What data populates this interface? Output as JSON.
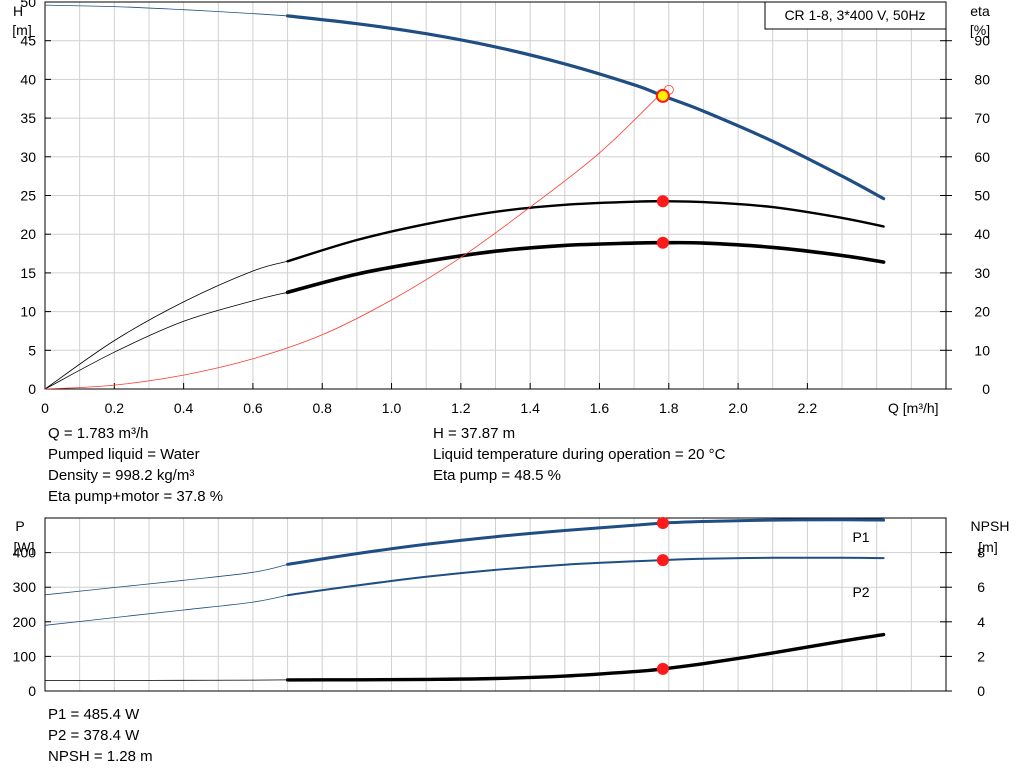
{
  "colors": {
    "head": "#1f4e84",
    "eta": "#ff3b30",
    "point": "#ff1a1a",
    "dutyPoint": "#ffee00",
    "black": "#000000",
    "grid": "#d0d0d0"
  },
  "top_chart": {
    "legend_box": "CR 1-8, 3*400 V, 50Hz",
    "left_axis_label": [
      "H",
      "[m]"
    ],
    "right_axis_label": [
      "eta",
      "[%]"
    ],
    "x_axis_label": "Q [m³/h]",
    "x_ticks": [
      "0",
      "0.2",
      "0.4",
      "0.6",
      "0.8",
      "1.0",
      "1.2",
      "1.4",
      "1.6",
      "1.8",
      "2.0",
      "2.2"
    ],
    "y_ticks": [
      "0",
      "5",
      "10",
      "15",
      "20",
      "25",
      "30",
      "35",
      "40",
      "45",
      "50"
    ],
    "eta_ticks": [
      "0",
      "10",
      "20",
      "30",
      "40",
      "50",
      "60",
      "70",
      "80",
      "90"
    ]
  },
  "top_info": {
    "left": [
      "Q = 1.783 m³/h",
      "Pumped liquid = Water",
      "Density = 998.2 kg/m³",
      "Eta pump+motor = 37.8 %"
    ],
    "right": [
      "H = 37.87 m",
      "Liquid temperature during operation = 20 °C",
      "Eta pump = 48.5 %"
    ]
  },
  "bottom_chart": {
    "left_axis_label": [
      "P",
      "[W]"
    ],
    "right_axis_label": [
      "NPSH",
      "[m]"
    ],
    "y_ticks": [
      "0",
      "100",
      "200",
      "300",
      "400"
    ],
    "npsh_ticks": [
      "0",
      "2",
      "4",
      "6",
      "8"
    ],
    "series_labels": [
      "P1",
      "P2"
    ]
  },
  "bottom_info": [
    "P1 = 485.4 W",
    "P2 = 378.4 W",
    "NPSH = 1.28 m"
  ],
  "chart_data": [
    {
      "type": "line",
      "xlabel": "Q [m³/h]",
      "ylabel": "H [m]",
      "y2label": "eta [%]",
      "xlim": [
        0,
        2.6
      ],
      "ylim": [
        0,
        50
      ],
      "y2lim": [
        0,
        100
      ],
      "grid": true,
      "legend": "CR 1-8, 3*400 V, 50Hz",
      "operating_range": [
        0.7,
        2.42
      ],
      "series": [
        {
          "name": "H",
          "axis": "left",
          "style": "head",
          "x": [
            0,
            0.2,
            0.4,
            0.6,
            0.7,
            0.9,
            1.1,
            1.3,
            1.5,
            1.7,
            1.783,
            1.9,
            2.1,
            2.3,
            2.42
          ],
          "y": [
            49.6,
            49.4,
            49.0,
            48.5,
            48.2,
            47.2,
            45.9,
            44.2,
            42.0,
            39.3,
            37.87,
            35.9,
            32.0,
            27.5,
            24.6
          ]
        },
        {
          "name": "Eta pump",
          "axis": "right",
          "style": "eta-pump",
          "x": [
            0,
            0.2,
            0.4,
            0.6,
            0.7,
            0.9,
            1.1,
            1.3,
            1.5,
            1.7,
            1.783,
            1.9,
            2.1,
            2.3,
            2.42
          ],
          "y": [
            0,
            12.5,
            22.5,
            30.5,
            33.0,
            38.5,
            42.6,
            45.8,
            47.6,
            48.4,
            48.5,
            48.3,
            47.0,
            44.2,
            42.0
          ]
        },
        {
          "name": "Eta pump+motor",
          "axis": "right",
          "style": "eta-total",
          "x": [
            0,
            0.2,
            0.4,
            0.6,
            0.7,
            0.9,
            1.1,
            1.3,
            1.5,
            1.7,
            1.783,
            1.9,
            2.1,
            2.3,
            2.42
          ],
          "y": [
            0,
            9.5,
            17.5,
            22.8,
            25.0,
            29.7,
            33.0,
            35.6,
            37.1,
            37.7,
            37.8,
            37.7,
            36.6,
            34.5,
            32.8
          ]
        },
        {
          "name": "Efficiency",
          "axis": "left",
          "style": "efficiency",
          "x": [
            0,
            0.2,
            0.4,
            0.6,
            0.8,
            1.0,
            1.2,
            1.4,
            1.6,
            1.783
          ],
          "y": [
            0,
            0.5,
            1.8,
            3.9,
            7.0,
            11.5,
            17.0,
            23.5,
            30.5,
            38.4
          ]
        }
      ],
      "points": [
        {
          "x": 1.783,
          "y": 37.87,
          "axis": "left",
          "kind": "duty"
        },
        {
          "x": 1.783,
          "y": 48.5,
          "axis": "right",
          "kind": "marker"
        },
        {
          "x": 1.783,
          "y": 37.8,
          "axis": "right",
          "kind": "marker"
        }
      ]
    },
    {
      "type": "line",
      "xlabel": "Q [m³/h]",
      "ylabel": "P [W]",
      "y2label": "NPSH [m]",
      "xlim": [
        0,
        2.6
      ],
      "ylim": [
        0,
        500
      ],
      "y2lim": [
        0,
        10
      ],
      "grid": true,
      "operating_range": [
        0.7,
        2.42
      ],
      "series": [
        {
          "name": "P1",
          "axis": "left",
          "style": "p1",
          "x": [
            0,
            0.2,
            0.4,
            0.6,
            0.7,
            0.9,
            1.1,
            1.3,
            1.5,
            1.7,
            1.783,
            1.9,
            2.1,
            2.3,
            2.42
          ],
          "y": [
            278,
            299,
            320,
            343,
            366,
            397,
            424,
            446,
            464,
            479,
            485.4,
            490,
            494,
            495,
            494
          ]
        },
        {
          "name": "P2",
          "axis": "left",
          "style": "p2",
          "x": [
            0,
            0.2,
            0.4,
            0.6,
            0.7,
            0.9,
            1.1,
            1.3,
            1.5,
            1.7,
            1.783,
            1.9,
            2.1,
            2.3,
            2.42
          ],
          "y": [
            190,
            212,
            234,
            257,
            277,
            305,
            330,
            350,
            365,
            375,
            378.4,
            382,
            385,
            385,
            384
          ]
        },
        {
          "name": "NPSH",
          "axis": "right",
          "style": "npsh",
          "x": [
            0,
            0.2,
            0.4,
            0.6,
            0.7,
            0.9,
            1.1,
            1.3,
            1.5,
            1.7,
            1.783,
            1.9,
            2.1,
            2.3,
            2.42
          ],
          "y": [
            0.6,
            0.61,
            0.62,
            0.63,
            0.64,
            0.65,
            0.67,
            0.72,
            0.86,
            1.12,
            1.28,
            1.58,
            2.2,
            2.88,
            3.26
          ]
        }
      ],
      "points": [
        {
          "x": 1.783,
          "y": 485.4,
          "axis": "left",
          "kind": "marker"
        },
        {
          "x": 1.783,
          "y": 378.4,
          "axis": "left",
          "kind": "marker"
        },
        {
          "x": 1.783,
          "y": 1.28,
          "axis": "right",
          "kind": "marker"
        }
      ]
    }
  ]
}
